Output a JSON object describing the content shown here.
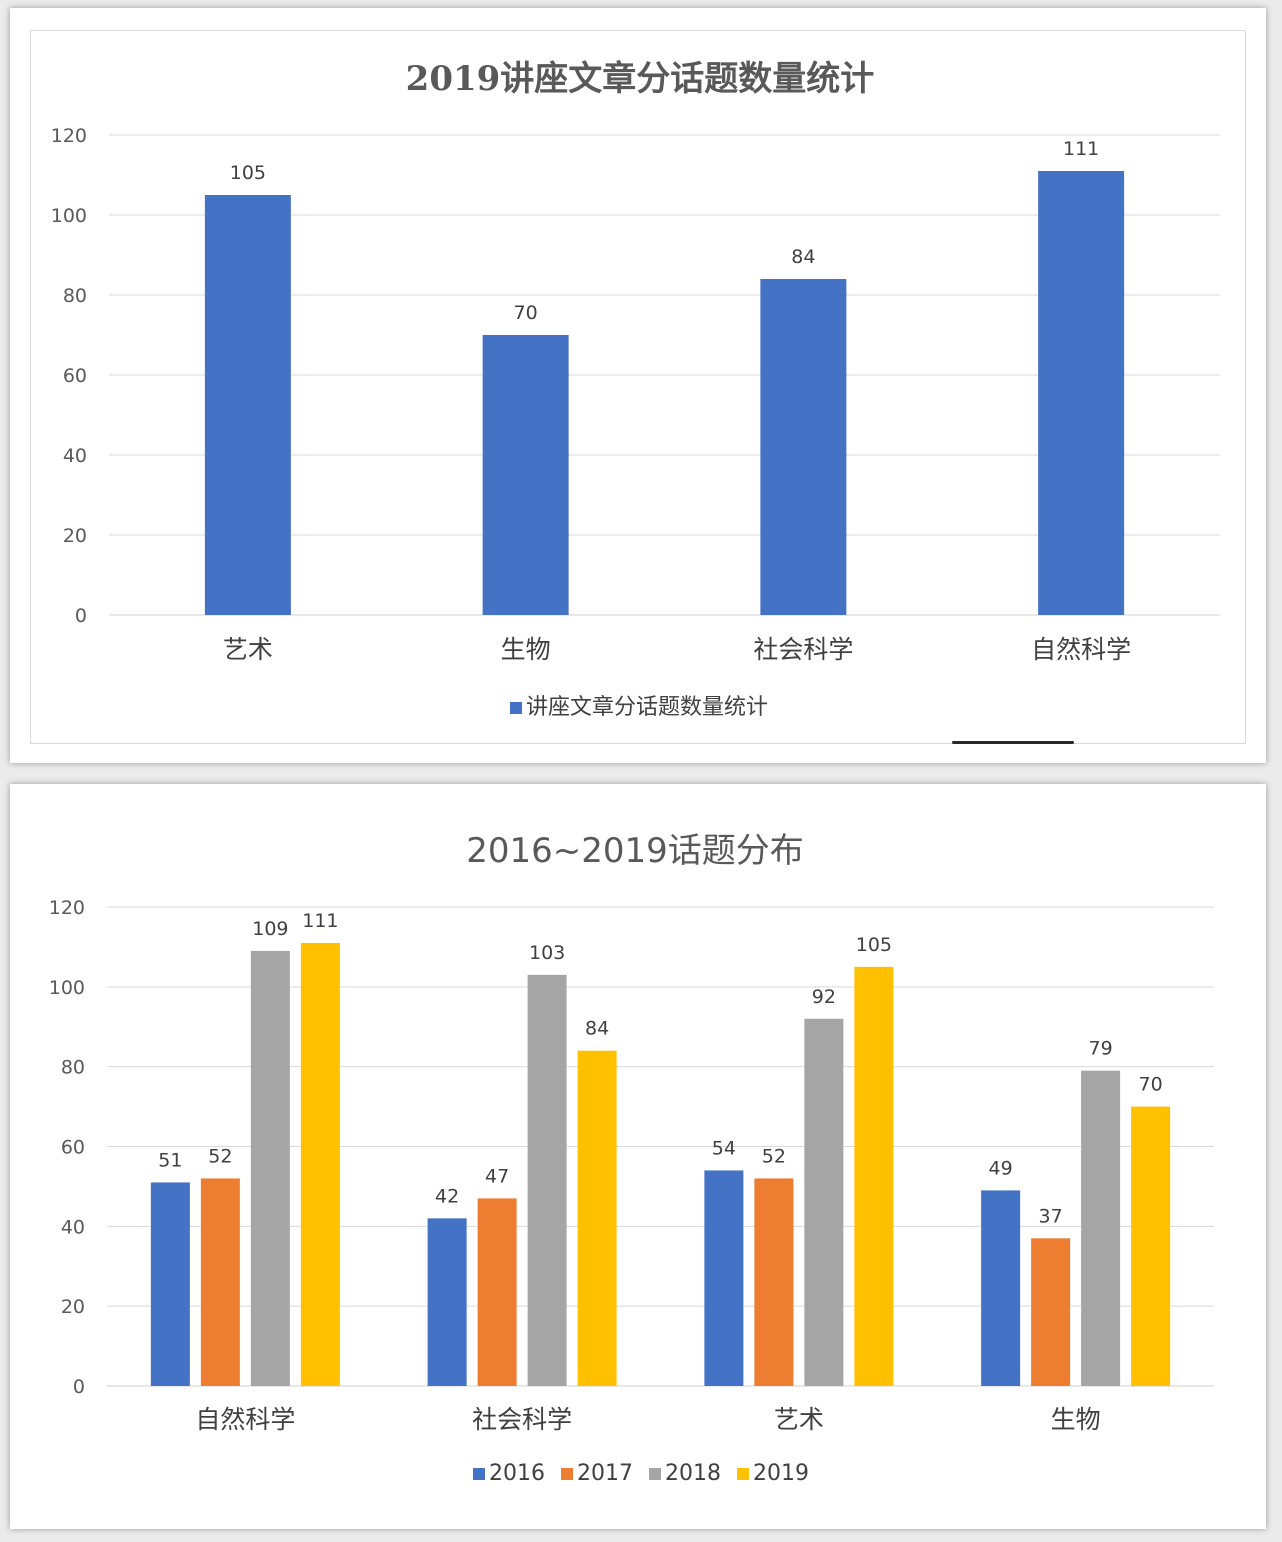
{
  "chart_data": [
    {
      "type": "bar",
      "title": "2019讲座文章分话题数量统计",
      "categories": [
        "艺术",
        "生物",
        "社会科学",
        "自然科学"
      ],
      "series": [
        {
          "name": "讲座文章分话题数量统计",
          "values": [
            105,
            70,
            84,
            111
          ],
          "color": "#4472C4"
        }
      ],
      "yticks": [
        "0",
        "20",
        "40",
        "60",
        "80",
        "100",
        "120"
      ],
      "ylim": [
        0,
        120
      ],
      "grid": true,
      "legend_position": "bottom"
    },
    {
      "type": "bar",
      "title": "2016~2019话题分布",
      "categories": [
        "自然科学",
        "社会科学",
        "艺术",
        "生物"
      ],
      "series": [
        {
          "name": "2016",
          "values": [
            51,
            42,
            54,
            49
          ],
          "color": "#4472C4"
        },
        {
          "name": "2017",
          "values": [
            52,
            47,
            52,
            37
          ],
          "color": "#ED7D31"
        },
        {
          "name": "2018",
          "values": [
            109,
            103,
            92,
            79
          ],
          "color": "#A5A5A5"
        },
        {
          "name": "2019",
          "values": [
            111,
            84,
            105,
            70
          ],
          "color": "#FFC000"
        }
      ],
      "yticks": [
        "0",
        "20",
        "40",
        "60",
        "80",
        "100",
        "120"
      ],
      "ylim": [
        0,
        120
      ],
      "grid": true,
      "legend_position": "bottom"
    }
  ]
}
